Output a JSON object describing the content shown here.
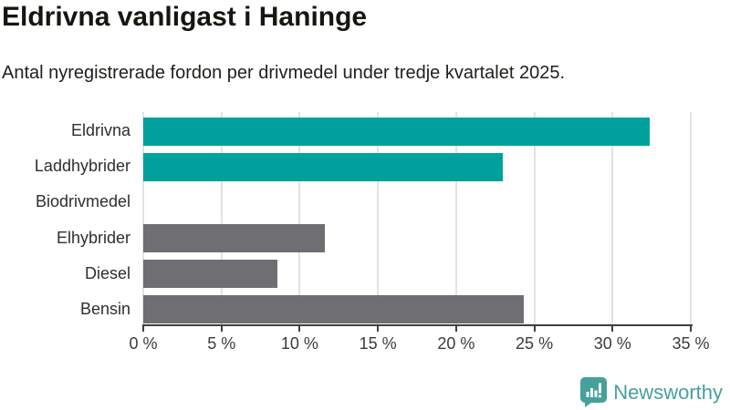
{
  "title": "Eldrivna vanligast i Haninge",
  "subtitle": "Antal nyregistrerade fordon per drivmedel under tredje kvartalet 2025.",
  "colors": {
    "teal_bar": "#00a19c",
    "gray_bar": "#6e6e73",
    "brand_teal": "#46a09c",
    "grid": "#e3e3e3",
    "axis": "#3f3f3f",
    "title_text": "#15160f",
    "background": "#ffffff"
  },
  "chart_data": {
    "type": "bar",
    "orientation": "horizontal",
    "title": "Eldrivna vanligast i Haninge",
    "subtitle": "Antal nyregistrerade fordon per drivmedel under tredje kvartalet 2025.",
    "categories": [
      "Eldrivna",
      "Laddhybrider",
      "Biodrivmedel",
      "Elhybrider",
      "Diesel",
      "Bensin"
    ],
    "values": [
      32.4,
      23.0,
      0,
      11.6,
      8.6,
      24.3
    ],
    "bar_colors": [
      "#00a19c",
      "#00a19c",
      "#00a19c",
      "#6e6e73",
      "#6e6e73",
      "#6e6e73"
    ],
    "unit": "%",
    "xlim": [
      0,
      35
    ],
    "x_ticks": [
      "0 %",
      "5 %",
      "10 %",
      "15 %",
      "20 %",
      "25 %",
      "30 %",
      "35 %"
    ],
    "x_tick_values": [
      0,
      5,
      10,
      15,
      20,
      25,
      30,
      35
    ],
    "grid": true,
    "legend": false
  },
  "footer": {
    "brand": "Newsworthy",
    "logo_icon": "bar-chart-speech-bubble-icon"
  }
}
